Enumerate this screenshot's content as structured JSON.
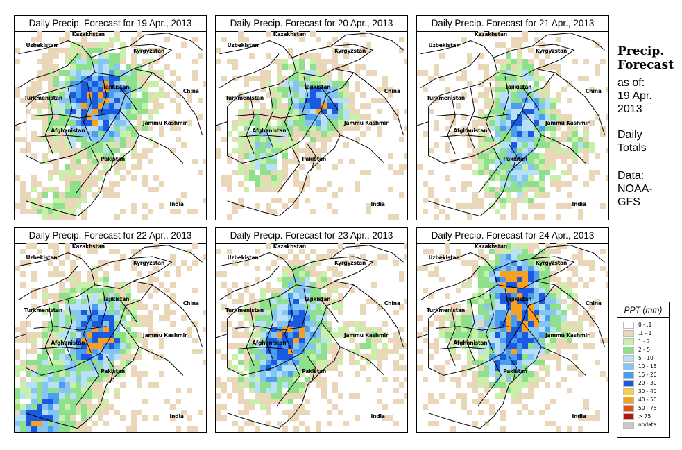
{
  "panels": [
    {
      "title": "Daily Precip. Forecast for  19 Apr., 2013"
    },
    {
      "title": "Daily Precip. Forecast for  20 Apr., 2013"
    },
    {
      "title": "Daily Precip. Forecast for  21 Apr., 2013"
    },
    {
      "title": "Daily Precip. Forecast for  22 Apr., 2013"
    },
    {
      "title": "Daily Precip. Forecast for  23 Apr., 2013"
    },
    {
      "title": "Daily Precip. Forecast for  24 Apr., 2013"
    }
  ],
  "map_labels": {
    "uzbekistan": "Uzbekistan",
    "kazakhstan": "Kazakhstan",
    "kyrgyzstan": "Kyrgyzstan",
    "china": "China",
    "tajikistan": "Tajikistan",
    "turkmenistan": "Turkmenistan",
    "afghanistan": "Afghanistan",
    "jammu_kashmir": "Jammu Kashmir",
    "pakistan": "Pakistan",
    "india": "India"
  },
  "sidebar": {
    "title_line1": "Precip.",
    "title_line2": "Forecast",
    "asof_line1": "as of:",
    "asof_line2": "19 Apr.",
    "asof_line3": "2013",
    "totals_line1": "Daily",
    "totals_line2": "Totals",
    "source_line1": "Data:",
    "source_line2": "NOAA-",
    "source_line3": "GFS"
  },
  "legend": {
    "title": "PPT (mm)",
    "items": [
      {
        "label": "0 - .1",
        "color": "#ffffff"
      },
      {
        "label": ".1 - 1",
        "color": "#ead6b8"
      },
      {
        "label": "1 - 2",
        "color": "#c8f0a8"
      },
      {
        "label": "2 - 5",
        "color": "#8ee08c"
      },
      {
        "label": "5 - 10",
        "color": "#b8e0f8"
      },
      {
        "label": "10 - 15",
        "color": "#86c4f4"
      },
      {
        "label": "15 - 20",
        "color": "#4c9cf0"
      },
      {
        "label": "20 - 30",
        "color": "#1a5ae0"
      },
      {
        "label": "30 - 40",
        "color": "#f8d048"
      },
      {
        "label": "40 - 50",
        "color": "#f8a020"
      },
      {
        "label": "50 - 75",
        "color": "#e05010"
      },
      {
        "label": "> 75",
        "color": "#b01808"
      },
      {
        "label": "nodata",
        "color": "#c8c8c8"
      }
    ]
  }
}
